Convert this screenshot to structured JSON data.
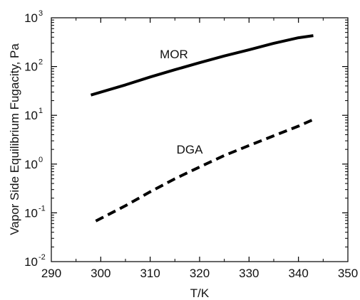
{
  "chart_data": {
    "type": "line",
    "title": "",
    "xlabel": "T/K",
    "ylabel": "Vapor Side Equilibrium Fugacity, Pa",
    "xlim": [
      290,
      350
    ],
    "ylim": [
      0.01,
      1000
    ],
    "yscale": "log",
    "grid": false,
    "legend": "none",
    "x_ticks": [
      "290",
      "300",
      "310",
      "320",
      "330",
      "340",
      "350"
    ],
    "y_ticks": [
      {
        "base": "10",
        "exp": "-2"
      },
      {
        "base": "10",
        "exp": "-1"
      },
      {
        "base": "10",
        "exp": "0"
      },
      {
        "base": "10",
        "exp": "1"
      },
      {
        "base": "10",
        "exp": "2"
      },
      {
        "base": "10",
        "exp": "3"
      }
    ],
    "series": [
      {
        "name": "MOR",
        "style": "solid",
        "color": "#000000",
        "x": [
          298,
          305,
          310,
          315,
          320,
          325,
          330,
          335,
          340,
          343
        ],
        "y": [
          26,
          42,
          61,
          86,
          120,
          165,
          220,
          300,
          390,
          430
        ]
      },
      {
        "name": "DGA",
        "style": "dashed",
        "color": "#000000",
        "x": [
          299,
          305,
          310,
          315,
          320,
          325,
          330,
          335,
          340,
          343
        ],
        "y": [
          0.068,
          0.14,
          0.27,
          0.5,
          0.87,
          1.5,
          2.4,
          3.8,
          6.0,
          8.2
        ]
      }
    ]
  }
}
